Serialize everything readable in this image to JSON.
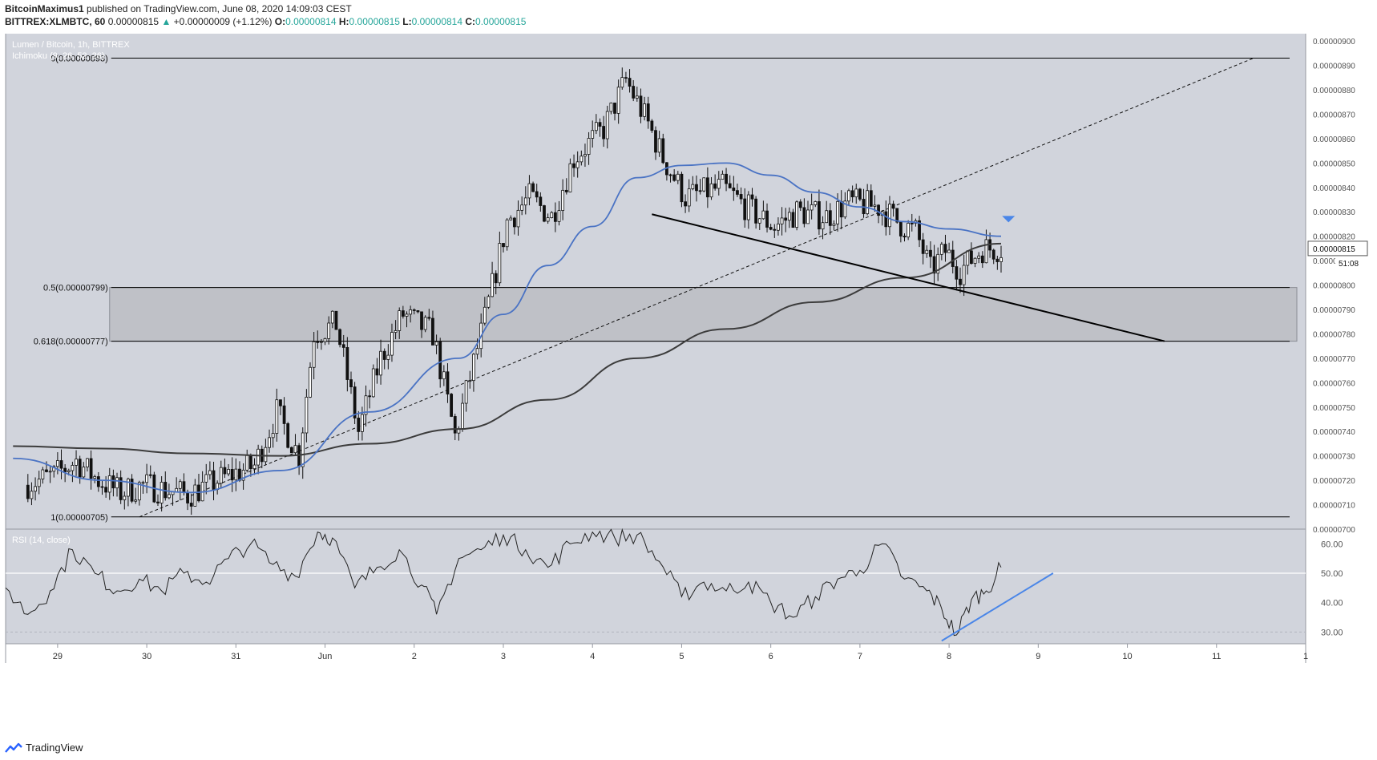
{
  "header": {
    "author": "BitcoinMaximus1",
    "published_text": "published on TradingView.com, June 08, 2020 14:09:03 CEST",
    "symbol": "BITTREX:XLMBTC, 60",
    "last": "0.00000815",
    "change": "+0.00000009 (+1.12%)",
    "o_label": "O:",
    "o_val": "0.00000814",
    "h_label": "H:",
    "h_val": "0.00000815",
    "l_label": "L:",
    "l_val": "0.00000814",
    "c_label": "C:",
    "c_val": "0.00000815"
  },
  "chart": {
    "title": "Lumen / Bitcoin, 1h, BITTREX",
    "indicator": "Ichimoku (9, 26, 52, 26)",
    "rsi_label": "RSI (14, close)",
    "price_badge": "0.00000815",
    "countdown": "51:08",
    "fib_labels": [
      "0(0.00000893)",
      "0.5(0.00000799)",
      "0.618(0.00000777)",
      "1(0.00000705)"
    ]
  },
  "footer": {
    "brand": "TradingView"
  },
  "colors": {
    "panel": "#d1d4dc",
    "ma_fast": "#4a73c4",
    "ma_slow": "#3c3c3c",
    "rsi_trend": "#4a86e8",
    "marker": "#4a86e8",
    "up": "#26a69a"
  },
  "chart_data": [
    {
      "type": "candlestick",
      "title": "Lumen / Bitcoin, 1h, BITTREX",
      "x_tick_labels": [
        "29",
        "30",
        "31",
        "Jun",
        "2",
        "3",
        "4",
        "5",
        "6",
        "7",
        "8",
        "9",
        "10",
        "11",
        "1"
      ],
      "y_tick_labels": [
        "0.00000900",
        "0.00000890",
        "0.00000880",
        "0.00000870",
        "0.00000860",
        "0.00000850",
        "0.00000840",
        "0.00000830",
        "0.00000820",
        "0.00000810",
        "0.00000800",
        "0.00000790",
        "0.00000780",
        "0.00000770",
        "0.00000760",
        "0.00000750",
        "0.00000740",
        "0.00000730",
        "0.00000720",
        "0.00000710",
        "0.00000700"
      ],
      "ylim": [
        7e-06,
        9.03e-06
      ],
      "grid": false,
      "close_path": [
        [
          "2020-05-28T16:00",
          7.18e-06
        ],
        [
          "2020-05-29T00:00",
          7.22e-06
        ],
        [
          "2020-05-29T06:00",
          7.28e-06
        ],
        [
          "2020-05-29T12:00",
          7.2e-06
        ],
        [
          "2020-05-29T18:00",
          7.15e-06
        ],
        [
          "2020-05-30T00:00",
          7.18e-06
        ],
        [
          "2020-05-30T12:00",
          7.14e-06
        ],
        [
          "2020-05-30T20:00",
          7.2e-06
        ],
        [
          "2020-05-31T06:00",
          7.26e-06
        ],
        [
          "2020-05-31T12:00",
          7.48e-06
        ],
        [
          "2020-05-31T18:00",
          7.3e-06
        ],
        [
          "2020-05-31T22:00",
          7.8e-06
        ],
        [
          "2020-06-01T04:00",
          7.84e-06
        ],
        [
          "2020-06-01T10:00",
          7.4e-06
        ],
        [
          "2020-06-01T16:00",
          7.7e-06
        ],
        [
          "2020-06-01T22:00",
          7.88e-06
        ],
        [
          "2020-06-02T06:00",
          7.8e-06
        ],
        [
          "2020-06-02T12:00",
          7.38e-06
        ],
        [
          "2020-06-02T20:00",
          7.86e-06
        ],
        [
          "2020-06-03T02:00",
          8.26e-06
        ],
        [
          "2020-06-03T08:00",
          8.36e-06
        ],
        [
          "2020-06-03T14:00",
          8.28e-06
        ],
        [
          "2020-06-03T20:00",
          8.52e-06
        ],
        [
          "2020-06-04T04:00",
          8.64e-06
        ],
        [
          "2020-06-04T10:00",
          8.84e-06
        ],
        [
          "2020-06-04T16:00",
          8.66e-06
        ],
        [
          "2020-06-04T20:00",
          8.52e-06
        ],
        [
          "2020-06-05T02:00",
          8.36e-06
        ],
        [
          "2020-06-05T12:00",
          8.4e-06
        ],
        [
          "2020-06-05T20:00",
          8.3e-06
        ],
        [
          "2020-06-06T02:00",
          8.24e-06
        ],
        [
          "2020-06-06T08:00",
          8.3e-06
        ],
        [
          "2020-06-06T16:00",
          8.28e-06
        ],
        [
          "2020-06-06T22:00",
          8.34e-06
        ],
        [
          "2020-06-07T06:00",
          8.32e-06
        ],
        [
          "2020-06-07T12:00",
          8.25e-06
        ],
        [
          "2020-06-07T16:00",
          8.22e-06
        ],
        [
          "2020-06-07T20:00",
          8.06e-06
        ],
        [
          "2020-06-08T00:00",
          8.14e-06
        ],
        [
          "2020-06-08T04:00",
          8.06e-06
        ],
        [
          "2020-06-08T10:00",
          8.15e-06
        ],
        [
          "2020-06-08T14:00",
          8.15e-06
        ]
      ],
      "ma_fast": [
        [
          "2020-05-28T12:00",
          7.29e-06
        ],
        [
          "2020-05-29T12:00",
          7.2e-06
        ],
        [
          "2020-05-30T12:00",
          7.15e-06
        ],
        [
          "2020-05-31T12:00",
          7.24e-06
        ],
        [
          "2020-06-01T12:00",
          7.48e-06
        ],
        [
          "2020-06-02T12:00",
          7.7e-06
        ],
        [
          "2020-06-03T00:00",
          7.88e-06
        ],
        [
          "2020-06-03T12:00",
          8.08e-06
        ],
        [
          "2020-06-04T00:00",
          8.24e-06
        ],
        [
          "2020-06-04T12:00",
          8.44e-06
        ],
        [
          "2020-06-05T00:00",
          8.49e-06
        ],
        [
          "2020-06-05T12:00",
          8.5e-06
        ],
        [
          "2020-06-06T00:00",
          8.45e-06
        ],
        [
          "2020-06-06T12:00",
          8.38e-06
        ],
        [
          "2020-06-07T00:00",
          8.32e-06
        ],
        [
          "2020-06-07T12:00",
          8.26e-06
        ],
        [
          "2020-06-08T00:00",
          8.23e-06
        ],
        [
          "2020-06-08T14:00",
          8.2e-06
        ]
      ],
      "ma_slow": [
        [
          "2020-05-28T12:00",
          7.34e-06
        ],
        [
          "2020-05-29T12:00",
          7.33e-06
        ],
        [
          "2020-05-30T12:00",
          7.31e-06
        ],
        [
          "2020-05-31T12:00",
          7.3e-06
        ],
        [
          "2020-06-01T12:00",
          7.35e-06
        ],
        [
          "2020-06-02T12:00",
          7.41e-06
        ],
        [
          "2020-06-03T12:00",
          7.53e-06
        ],
        [
          "2020-06-04T12:00",
          7.7e-06
        ],
        [
          "2020-06-05T12:00",
          7.82e-06
        ],
        [
          "2020-06-06T12:00",
          7.93e-06
        ],
        [
          "2020-06-07T12:00",
          8.03e-06
        ],
        [
          "2020-06-08T14:00",
          8.17e-06
        ]
      ],
      "fib_levels": [
        {
          "label": "0(0.00000893)",
          "value": 8.93e-06
        },
        {
          "label": "0.5(0.00000799)",
          "value": 7.99e-06
        },
        {
          "label": "0.618(0.00000777)",
          "value": 7.77e-06
        },
        {
          "label": "1(0.00000705)",
          "value": 7.05e-06
        }
      ],
      "zone": {
        "from": 7.77e-06,
        "to": 7.99e-06
      },
      "trendline": [
        [
          "2020-06-04T16:00",
          8.29e-06
        ],
        [
          "2020-06-10T10:00",
          7.77e-06
        ]
      ],
      "dashed_trendline": [
        [
          "2020-05-29T22:00",
          7.05e-06
        ],
        [
          "2020-06-11T10:00",
          8.93e-06
        ]
      ],
      "last_price": 8.15e-06,
      "time_range": [
        "2020-05-28T10:00",
        "2020-06-12T00:00"
      ]
    },
    {
      "type": "line",
      "title": "RSI (14, close)",
      "y_tick_labels": [
        "60.00",
        "50.00",
        "40.00",
        "30.00"
      ],
      "ylim": [
        26,
        65
      ],
      "hline": 50,
      "series": [
        {
          "values": [
            [
              "2020-05-28T10:00",
              45
            ],
            [
              "2020-05-28T16:00",
              36
            ],
            [
              "2020-05-28T22:00",
              44
            ],
            [
              "2020-05-29T04:00",
              58
            ],
            [
              "2020-05-29T10:00",
              50
            ],
            [
              "2020-05-29T16:00",
              44
            ],
            [
              "2020-05-29T22:00",
              48
            ],
            [
              "2020-05-30T04:00",
              44
            ],
            [
              "2020-05-30T10:00",
              50
            ],
            [
              "2020-05-30T16:00",
              47
            ],
            [
              "2020-05-30T22:00",
              55
            ],
            [
              "2020-05-31T04:00",
              60
            ],
            [
              "2020-05-31T10:00",
              53
            ],
            [
              "2020-05-31T16:00",
              49
            ],
            [
              "2020-05-31T22:00",
              64
            ],
            [
              "2020-06-01T02:00",
              62
            ],
            [
              "2020-06-01T08:00",
              45
            ],
            [
              "2020-06-01T14:00",
              52
            ],
            [
              "2020-06-01T20:00",
              58
            ],
            [
              "2020-06-02T02:00",
              46
            ],
            [
              "2020-06-02T06:00",
              36
            ],
            [
              "2020-06-02T12:00",
              55
            ],
            [
              "2020-06-02T18:00",
              58
            ],
            [
              "2020-06-03T00:00",
              63
            ],
            [
              "2020-06-03T06:00",
              58
            ],
            [
              "2020-06-03T12:00",
              52
            ],
            [
              "2020-06-03T18:00",
              60
            ],
            [
              "2020-06-04T00:00",
              64
            ],
            [
              "2020-06-04T06:00",
              62
            ],
            [
              "2020-06-04T12:00",
              63
            ],
            [
              "2020-06-04T18:00",
              54
            ],
            [
              "2020-06-05T00:00",
              42
            ],
            [
              "2020-06-05T06:00",
              47
            ],
            [
              "2020-06-05T12:00",
              44
            ],
            [
              "2020-06-05T18:00",
              47
            ],
            [
              "2020-06-06T00:00",
              40
            ],
            [
              "2020-06-06T06:00",
              35
            ],
            [
              "2020-06-06T12:00",
              42
            ],
            [
              "2020-06-06T18:00",
              48
            ],
            [
              "2020-06-07T00:00",
              51
            ],
            [
              "2020-06-07T06:00",
              60
            ],
            [
              "2020-06-07T12:00",
              48
            ],
            [
              "2020-06-07T18:00",
              44
            ],
            [
              "2020-06-07T22:00",
              38
            ],
            [
              "2020-06-08T02:00",
              29
            ],
            [
              "2020-06-08T06:00",
              41
            ],
            [
              "2020-06-08T10:00",
              44
            ],
            [
              "2020-06-08T14:00",
              52
            ]
          ]
        }
      ],
      "trendline": [
        [
          "2020-06-07T22:00",
          27
        ],
        [
          "2020-06-09T04:00",
          50
        ]
      ]
    }
  ]
}
